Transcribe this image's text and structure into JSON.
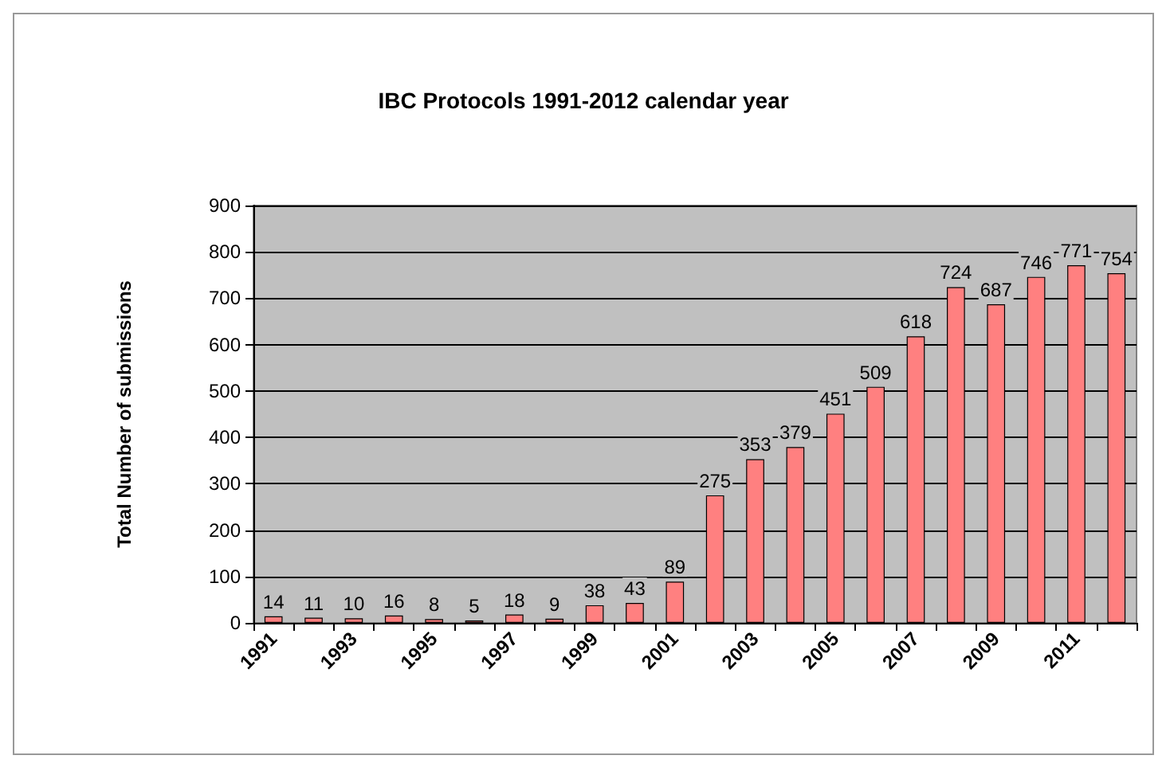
{
  "chart_data": {
    "type": "bar",
    "title": "IBC Protocols 1991-2012 calendar year",
    "ylabel": "Total Number of submissions",
    "categories": [
      "1991",
      null,
      "1993",
      null,
      "1995",
      null,
      "1997",
      null,
      "1999",
      null,
      "2001",
      null,
      "2003",
      null,
      "2005",
      null,
      "2007",
      null,
      "2009",
      null,
      "2011",
      null
    ],
    "values": [
      14,
      11,
      10,
      16,
      8,
      5,
      18,
      9,
      38,
      43,
      89,
      275,
      353,
      379,
      451,
      509,
      618,
      724,
      687,
      746,
      771,
      754
    ],
    "color": "#ff8080",
    "ylim": [
      0,
      900
    ],
    "yticks": [
      0,
      100,
      200,
      300,
      400,
      500,
      600,
      700,
      800,
      900
    ],
    "grid": "y",
    "data_labels": true
  }
}
